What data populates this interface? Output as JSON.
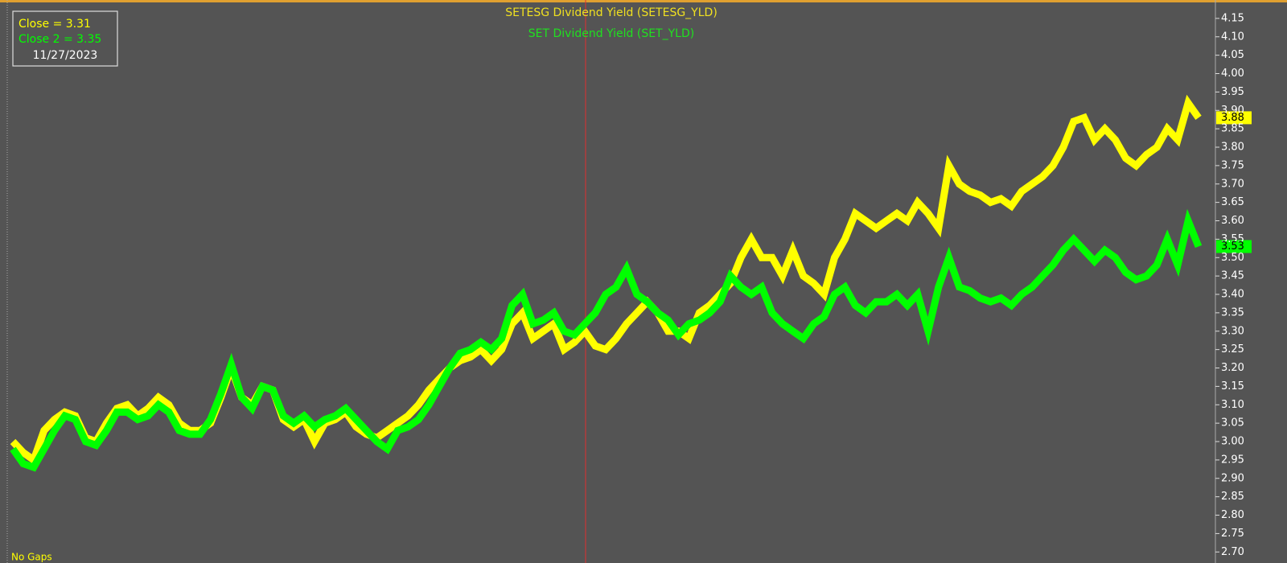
{
  "chart_data": {
    "type": "line",
    "footnote": "No Gaps",
    "crosshair_legend": [
      "Close = 3.31",
      "Close 2 = 3.35"
    ],
    "crosshair_date": "11/27/2023",
    "ylim": [
      2.67,
      4.2
    ],
    "yticks": [
      {
        "value": 2.7,
        "label": "2.70"
      },
      2.75,
      {
        "value": 2.8,
        "label": "2.80"
      },
      2.85,
      {
        "value": 2.9,
        "label": "2.90"
      },
      2.95,
      {
        "value": 3.0,
        "label": "3.00"
      },
      3.05,
      {
        "value": 3.1,
        "label": "3.10"
      },
      3.15,
      {
        "value": 3.2,
        "label": "3.20"
      },
      3.25,
      {
        "value": 3.3,
        "label": "3.30"
      },
      3.35,
      {
        "value": 3.4,
        "label": "3.40"
      },
      3.45,
      {
        "value": 3.5,
        "label": "3.50"
      },
      3.55,
      {
        "value": 3.6,
        "label": "3.60"
      },
      3.65,
      {
        "value": 3.7,
        "label": "3.70"
      },
      3.75,
      {
        "value": 3.8,
        "label": "3.80"
      },
      3.85,
      {
        "value": 3.9,
        "label": "3.90"
      },
      3.95,
      {
        "value": 4.0,
        "label": "4.00"
      },
      4.05,
      {
        "value": 4.1,
        "label": "4.10"
      },
      4.15
    ],
    "series": [
      {
        "name": "SETESG Dividend Yield (SETESG_YLD)",
        "color": "#ffff00",
        "last_label": "3.88",
        "values": [
          3.0,
          2.97,
          2.95,
          3.03,
          3.06,
          3.08,
          3.07,
          3.01,
          3.0,
          3.05,
          3.09,
          3.1,
          3.07,
          3.09,
          3.12,
          3.1,
          3.05,
          3.03,
          3.03,
          3.05,
          3.12,
          3.2,
          3.12,
          3.1,
          3.15,
          3.14,
          3.06,
          3.04,
          3.06,
          3.0,
          3.05,
          3.06,
          3.08,
          3.04,
          3.02,
          3.01,
          3.03,
          3.05,
          3.07,
          3.1,
          3.14,
          3.17,
          3.2,
          3.22,
          3.23,
          3.25,
          3.22,
          3.25,
          3.32,
          3.35,
          3.28,
          3.3,
          3.32,
          3.25,
          3.27,
          3.3,
          3.26,
          3.25,
          3.28,
          3.32,
          3.35,
          3.38,
          3.35,
          3.3,
          3.3,
          3.28,
          3.35,
          3.37,
          3.4,
          3.43,
          3.5,
          3.55,
          3.5,
          3.5,
          3.45,
          3.52,
          3.45,
          3.43,
          3.4,
          3.5,
          3.55,
          3.62,
          3.6,
          3.58,
          3.6,
          3.62,
          3.6,
          3.65,
          3.62,
          3.58,
          3.75,
          3.7,
          3.68,
          3.67,
          3.65,
          3.66,
          3.64,
          3.68,
          3.7,
          3.72,
          3.75,
          3.8,
          3.87,
          3.88,
          3.82,
          3.85,
          3.82,
          3.77,
          3.75,
          3.78,
          3.8,
          3.85,
          3.82,
          3.92,
          3.88
        ]
      },
      {
        "name": "SET Dividend Yield (SET_YLD)",
        "color": "#00ff00",
        "last_label": "3.53",
        "values": [
          2.98,
          2.94,
          2.93,
          2.98,
          3.03,
          3.07,
          3.06,
          3.0,
          2.99,
          3.03,
          3.08,
          3.08,
          3.06,
          3.07,
          3.1,
          3.08,
          3.03,
          3.02,
          3.02,
          3.06,
          3.13,
          3.21,
          3.12,
          3.09,
          3.15,
          3.14,
          3.07,
          3.05,
          3.07,
          3.04,
          3.06,
          3.07,
          3.09,
          3.06,
          3.03,
          3.0,
          2.98,
          3.03,
          3.04,
          3.06,
          3.1,
          3.15,
          3.2,
          3.24,
          3.25,
          3.27,
          3.25,
          3.28,
          3.37,
          3.4,
          3.32,
          3.33,
          3.35,
          3.3,
          3.29,
          3.32,
          3.35,
          3.4,
          3.42,
          3.47,
          3.4,
          3.38,
          3.35,
          3.33,
          3.29,
          3.32,
          3.33,
          3.35,
          3.38,
          3.45,
          3.42,
          3.4,
          3.42,
          3.35,
          3.32,
          3.3,
          3.28,
          3.32,
          3.34,
          3.4,
          3.42,
          3.37,
          3.35,
          3.38,
          3.38,
          3.4,
          3.37,
          3.4,
          3.3,
          3.42,
          3.5,
          3.42,
          3.41,
          3.39,
          3.38,
          3.39,
          3.37,
          3.4,
          3.42,
          3.45,
          3.48,
          3.52,
          3.55,
          3.52,
          3.49,
          3.52,
          3.5,
          3.46,
          3.44,
          3.45,
          3.48,
          3.55,
          3.48,
          3.6,
          3.53
        ]
      }
    ]
  }
}
